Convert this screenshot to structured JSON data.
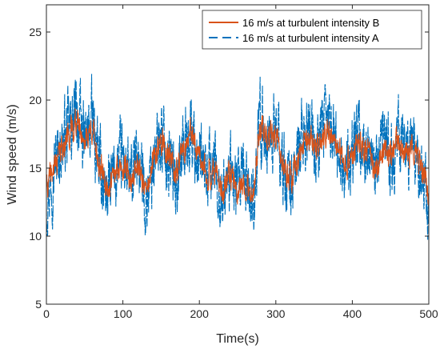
{
  "chart_data": {
    "type": "line",
    "title": "",
    "xlabel": "Time(s)",
    "ylabel": "Wind speed (m/s)",
    "xlim": [
      0,
      500
    ],
    "ylim": [
      5,
      27
    ],
    "xticks": [
      0,
      100,
      200,
      300,
      400,
      500
    ],
    "yticks": [
      5,
      10,
      15,
      20,
      25
    ],
    "grid": false,
    "legend_position": "top-right",
    "series": [
      {
        "name": "16 m/s at turbulent intensity B",
        "color": "#D95319",
        "style": "solid",
        "x": [
          0,
          10,
          20,
          30,
          40,
          50,
          60,
          70,
          80,
          90,
          100,
          110,
          120,
          130,
          140,
          150,
          160,
          170,
          180,
          190,
          200,
          210,
          220,
          230,
          240,
          250,
          260,
          270,
          280,
          290,
          300,
          310,
          320,
          330,
          340,
          350,
          360,
          370,
          380,
          390,
          400,
          410,
          420,
          430,
          440,
          450,
          460,
          470,
          480,
          490,
          500
        ],
        "y": [
          13.5,
          15.0,
          16.5,
          17.5,
          18.5,
          17.0,
          18.0,
          15.0,
          13.5,
          14.5,
          15.5,
          14.0,
          15.5,
          13.0,
          15.5,
          17.0,
          16.0,
          14.5,
          16.5,
          17.5,
          15.5,
          14.5,
          15.0,
          13.0,
          14.5,
          13.5,
          14.0,
          13.0,
          18.0,
          17.0,
          17.5,
          15.0,
          14.0,
          16.0,
          17.5,
          16.5,
          17.0,
          18.0,
          16.5,
          15.0,
          16.0,
          17.0,
          16.0,
          14.5,
          16.5,
          16.0,
          17.0,
          16.0,
          16.5,
          15.0,
          13.5
        ]
      },
      {
        "name": "16 m/s at turbulent intensity A",
        "color": "#0072BD",
        "style": "dashed",
        "x": [
          0,
          10,
          20,
          30,
          40,
          50,
          60,
          70,
          80,
          90,
          100,
          110,
          120,
          130,
          140,
          150,
          160,
          170,
          180,
          190,
          200,
          210,
          220,
          230,
          240,
          250,
          260,
          270,
          280,
          290,
          300,
          310,
          320,
          330,
          340,
          350,
          360,
          370,
          380,
          390,
          400,
          410,
          420,
          430,
          440,
          450,
          460,
          470,
          480,
          490,
          500
        ],
        "y": [
          13.0,
          15.2,
          16.8,
          17.8,
          19.0,
          16.8,
          18.4,
          14.8,
          13.0,
          14.6,
          15.8,
          13.6,
          15.8,
          12.6,
          15.6,
          17.4,
          15.8,
          14.2,
          16.8,
          17.8,
          15.2,
          14.2,
          15.2,
          12.6,
          14.6,
          13.2,
          14.2,
          12.6,
          18.4,
          17.2,
          17.8,
          14.8,
          13.6,
          16.2,
          17.8,
          16.4,
          17.2,
          18.4,
          16.4,
          14.8,
          16.2,
          17.2,
          15.8,
          14.2,
          16.8,
          15.8,
          17.2,
          15.8,
          16.8,
          14.6,
          13.0
        ]
      }
    ]
  }
}
